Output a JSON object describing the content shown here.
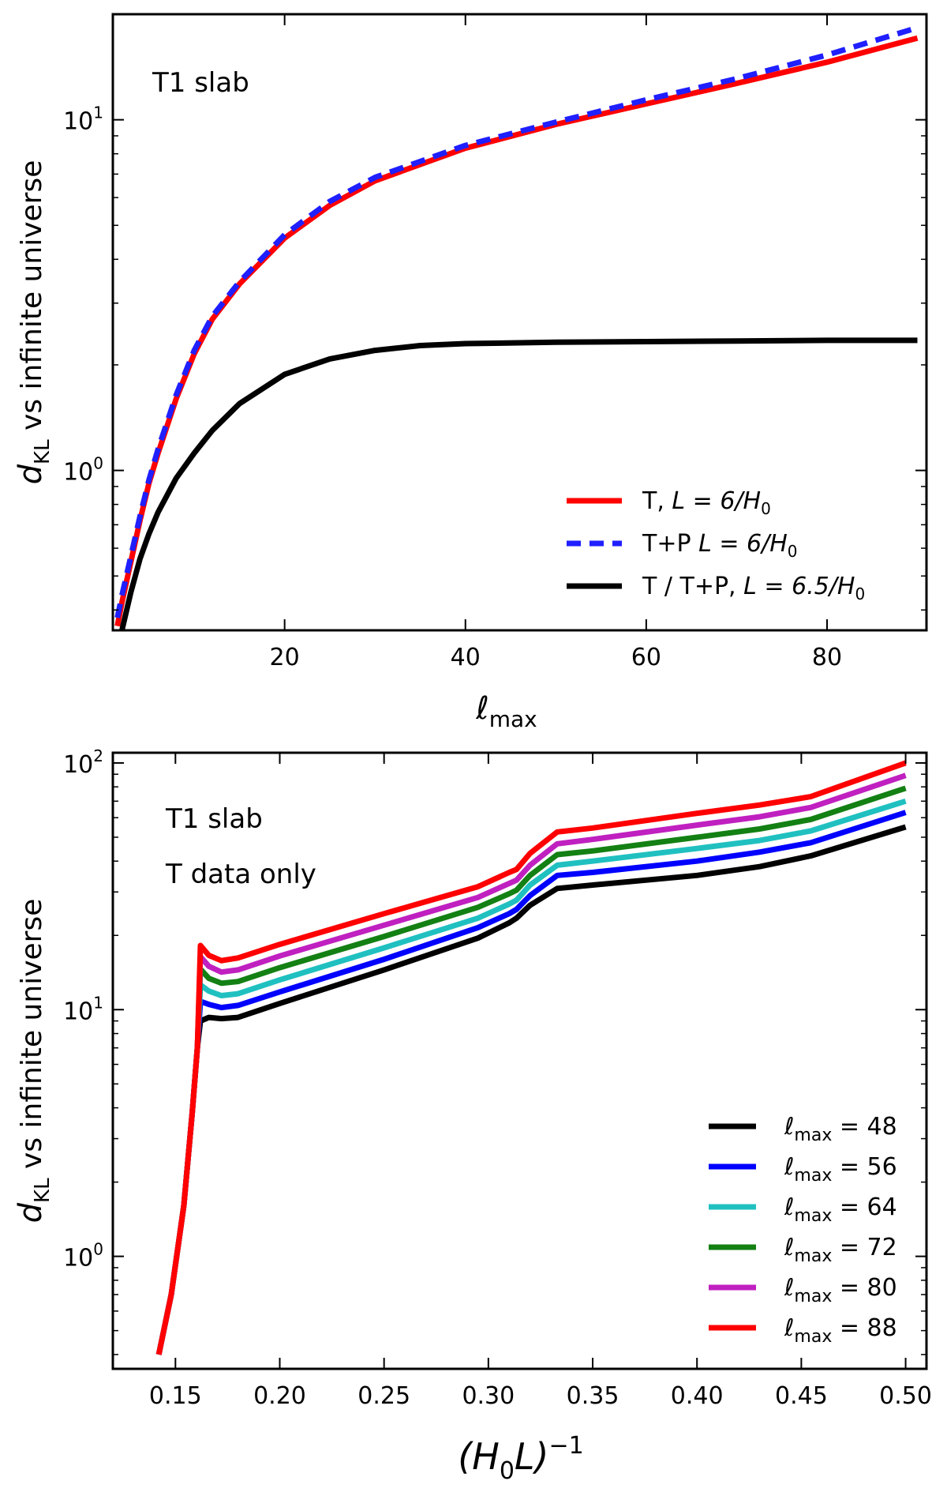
{
  "chart_data": [
    {
      "type": "line",
      "yscale": "log",
      "xlim": [
        1,
        91
      ],
      "ylim": [
        0.35,
        20
      ],
      "xticks": [
        20,
        40,
        60,
        80
      ],
      "xtick_labels": [
        "20",
        "40",
        "60",
        "80"
      ],
      "yticks": [
        1,
        10
      ],
      "ytick_labels": [
        {
          "base": "10",
          "exp": "0"
        },
        {
          "base": "10",
          "exp": "1"
        }
      ],
      "xlabel": {
        "main": "ℓ",
        "sub": "max"
      },
      "ylabel": {
        "main": "d",
        "sub": "KL",
        "rest": " vs infinite universe"
      },
      "annotations": [
        "T1 slab"
      ],
      "legend_location": "lower-right",
      "series": [
        {
          "name": "T, L = 6/H0",
          "legend": {
            "text": "T, ",
            "math": "L = 6/H",
            "sub": "0"
          },
          "color": "#ff0000",
          "style": "solid",
          "x": [
            1.5,
            2,
            3,
            4,
            5,
            6,
            8,
            10,
            12,
            15,
            20,
            25,
            30,
            40,
            50,
            60,
            70,
            80,
            90
          ],
          "y": [
            0.36,
            0.42,
            0.55,
            0.72,
            0.92,
            1.12,
            1.6,
            2.15,
            2.7,
            3.4,
            4.6,
            5.7,
            6.7,
            8.3,
            9.7,
            11.1,
            12.7,
            14.6,
            17.1
          ]
        },
        {
          "name": "T+P L = 6/H0",
          "legend": {
            "text": "T+P ",
            "math": "L = 6/H",
            "sub": "0"
          },
          "color": "#1f1fff",
          "style": "dashed",
          "x": [
            1.5,
            2,
            3,
            4,
            5,
            6,
            8,
            10,
            12,
            15,
            20,
            25,
            30,
            40,
            50,
            60,
            70,
            80,
            90
          ],
          "y": [
            0.38,
            0.44,
            0.57,
            0.74,
            0.94,
            1.15,
            1.64,
            2.2,
            2.75,
            3.45,
            4.7,
            5.85,
            6.85,
            8.45,
            9.85,
            11.4,
            13.1,
            15.3,
            18.3
          ]
        },
        {
          "name": "T / T+P, L = 6.5/H0",
          "legend": {
            "text": "T / T+P, ",
            "math": "L = 6.5/H",
            "sub": "0"
          },
          "color": "#000000",
          "style": "solid",
          "x": [
            2,
            3,
            4,
            5,
            6,
            8,
            10,
            12,
            15,
            20,
            25,
            30,
            35,
            40,
            50,
            60,
            70,
            80,
            90
          ],
          "y": [
            0.35,
            0.45,
            0.56,
            0.66,
            0.76,
            0.95,
            1.12,
            1.3,
            1.55,
            1.88,
            2.08,
            2.2,
            2.27,
            2.3,
            2.32,
            2.33,
            2.34,
            2.35,
            2.35
          ]
        }
      ]
    },
    {
      "type": "line",
      "yscale": "log",
      "xlim": [
        0.12,
        0.51
      ],
      "ylim": [
        0.35,
        110
      ],
      "xticks": [
        0.15,
        0.2,
        0.25,
        0.3,
        0.35,
        0.4,
        0.45,
        0.5
      ],
      "xtick_labels": [
        "0.15",
        "0.20",
        "0.25",
        "0.30",
        "0.35",
        "0.40",
        "0.45",
        "0.50"
      ],
      "yticks": [
        1,
        10,
        100
      ],
      "ytick_labels": [
        {
          "base": "10",
          "exp": "0"
        },
        {
          "base": "10",
          "exp": "1"
        },
        {
          "base": "10",
          "exp": "2"
        }
      ],
      "xlabel": {
        "main": "(H",
        "sub": "0",
        "mid": "L)",
        "sup": "−1"
      },
      "ylabel": {
        "main": "d",
        "sub": "KL",
        "rest": " vs infinite universe"
      },
      "annotations": [
        "T1 slab",
        "T data only"
      ],
      "legend_location": "lower-right",
      "series": [
        {
          "name": "ℓmax = 48",
          "legend": {
            "math": "ℓ",
            "sub": "max",
            "text": " = 48"
          },
          "color": "#000000",
          "x": [
            0.142,
            0.148,
            0.154,
            0.158,
            0.1605,
            0.162,
            0.166,
            0.172,
            0.18,
            0.2,
            0.25,
            0.295,
            0.31,
            0.3135,
            0.32,
            0.333,
            0.35,
            0.4,
            0.43,
            0.4545,
            0.5
          ],
          "y": [
            0.4,
            0.7,
            1.6,
            3.8,
            7.0,
            9.0,
            9.3,
            9.2,
            9.3,
            10.6,
            14.5,
            19.5,
            22.5,
            23.5,
            26.5,
            31.0,
            32.0,
            35.0,
            38.0,
            42.0,
            55.0
          ]
        },
        {
          "name": "ℓmax = 56",
          "legend": {
            "math": "ℓ",
            "sub": "max",
            "text": " = 56"
          },
          "color": "#0000ff",
          "x": [
            0.142,
            0.148,
            0.154,
            0.158,
            0.1605,
            0.162,
            0.166,
            0.172,
            0.18,
            0.2,
            0.25,
            0.295,
            0.31,
            0.3135,
            0.32,
            0.333,
            0.35,
            0.4,
            0.43,
            0.4545,
            0.5
          ],
          "y": [
            0.4,
            0.7,
            1.6,
            3.8,
            7.0,
            10.8,
            10.5,
            10.2,
            10.4,
            11.8,
            16.0,
            21.5,
            24.5,
            25.5,
            29.0,
            35.0,
            36.0,
            40.0,
            43.5,
            47.5,
            63.0
          ]
        },
        {
          "name": "ℓmax = 64",
          "legend": {
            "math": "ℓ",
            "sub": "max",
            "text": " = 64"
          },
          "color": "#20c0c0",
          "x": [
            0.142,
            0.148,
            0.154,
            0.158,
            0.1605,
            0.162,
            0.166,
            0.172,
            0.18,
            0.2,
            0.25,
            0.295,
            0.31,
            0.3135,
            0.32,
            0.333,
            0.35,
            0.4,
            0.43,
            0.4545,
            0.5
          ],
          "y": [
            0.4,
            0.7,
            1.6,
            3.8,
            7.0,
            12.6,
            11.9,
            11.4,
            11.6,
            13.2,
            17.8,
            23.5,
            26.8,
            27.8,
            32.0,
            38.5,
            40.0,
            45.0,
            48.5,
            53.0,
            70.0
          ]
        },
        {
          "name": "ℓmax = 72",
          "legend": {
            "math": "ℓ",
            "sub": "max",
            "text": " = 72"
          },
          "color": "#138013",
          "x": [
            0.142,
            0.148,
            0.154,
            0.158,
            0.1605,
            0.162,
            0.166,
            0.172,
            0.18,
            0.2,
            0.25,
            0.295,
            0.31,
            0.3135,
            0.32,
            0.333,
            0.35,
            0.4,
            0.43,
            0.4545,
            0.5
          ],
          "y": [
            0.4,
            0.7,
            1.6,
            3.8,
            7.0,
            14.6,
            13.4,
            12.8,
            13.0,
            14.8,
            19.8,
            26.0,
            29.5,
            30.5,
            35.0,
            42.5,
            44.0,
            50.0,
            54.0,
            59.0,
            79.0
          ]
        },
        {
          "name": "ℓmax = 80",
          "legend": {
            "math": "ℓ",
            "sub": "max",
            "text": " = 80"
          },
          "color": "#c020c0",
          "x": [
            0.142,
            0.148,
            0.154,
            0.158,
            0.1605,
            0.162,
            0.166,
            0.172,
            0.18,
            0.2,
            0.25,
            0.295,
            0.31,
            0.3135,
            0.32,
            0.333,
            0.35,
            0.4,
            0.43,
            0.4545,
            0.5
          ],
          "y": [
            0.4,
            0.7,
            1.6,
            3.8,
            7.0,
            16.4,
            15.0,
            14.2,
            14.5,
            16.5,
            22.0,
            28.5,
            32.5,
            33.5,
            38.5,
            47.0,
            49.0,
            56.0,
            60.5,
            66.0,
            89.0
          ]
        },
        {
          "name": "ℓmax = 88",
          "legend": {
            "math": "ℓ",
            "sub": "max",
            "text": " = 88"
          },
          "color": "#ff0000",
          "x": [
            0.142,
            0.148,
            0.154,
            0.158,
            0.1605,
            0.162,
            0.166,
            0.172,
            0.18,
            0.2,
            0.25,
            0.295,
            0.31,
            0.3135,
            0.32,
            0.333,
            0.35,
            0.4,
            0.43,
            0.4545,
            0.5
          ],
          "y": [
            0.4,
            0.7,
            1.6,
            3.8,
            7.0,
            18.2,
            16.6,
            15.8,
            16.2,
            18.4,
            24.5,
            31.5,
            36.0,
            37.0,
            43.0,
            52.5,
            54.5,
            62.5,
            67.5,
            73.0,
            100.0
          ]
        }
      ]
    }
  ]
}
